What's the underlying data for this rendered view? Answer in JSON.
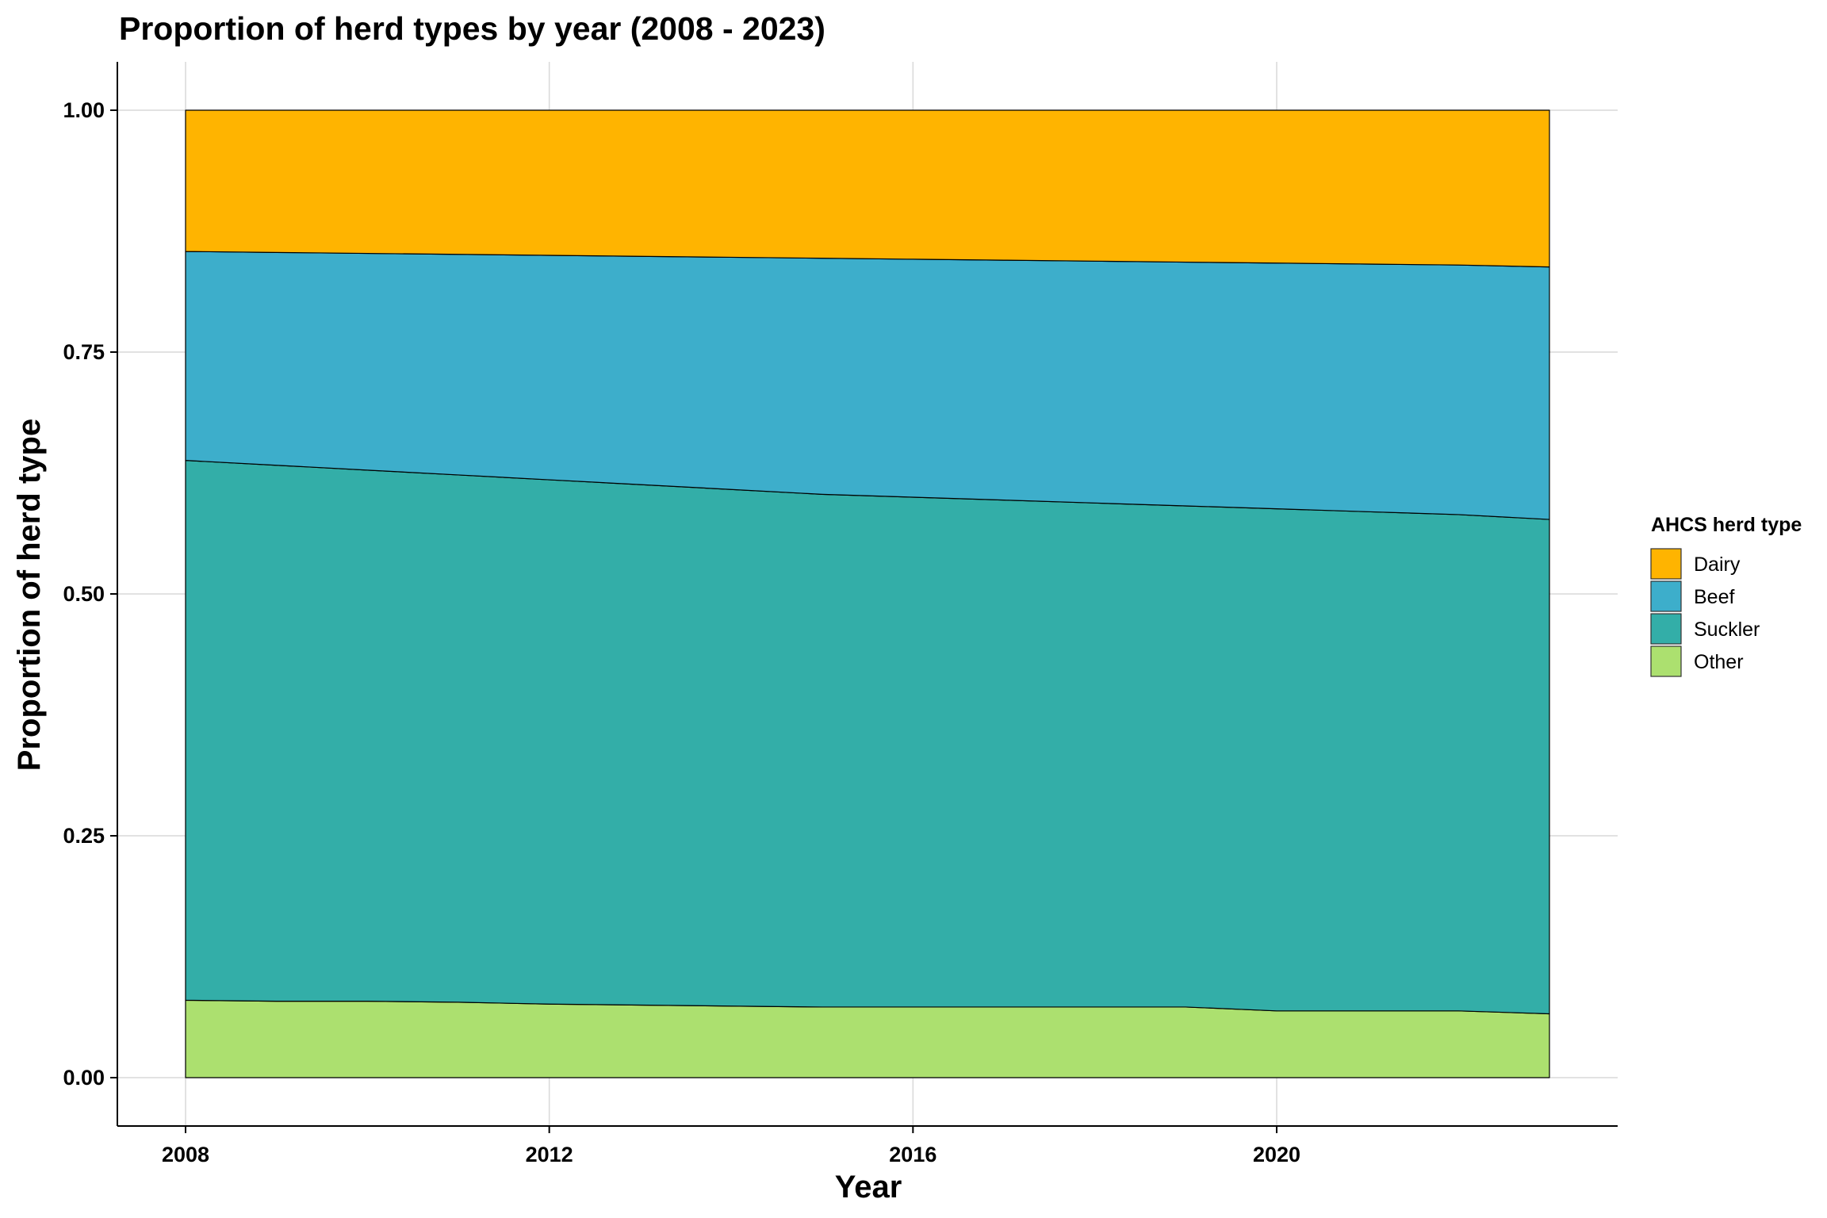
{
  "chart_data": {
    "type": "area",
    "stacked": true,
    "title": "Proportion of herd types by year (2008 - 2023)",
    "xlabel": "Year",
    "ylabel": "Proportion of herd type",
    "x": [
      2008,
      2009,
      2010,
      2011,
      2012,
      2013,
      2014,
      2015,
      2016,
      2017,
      2018,
      2019,
      2020,
      2021,
      2022,
      2023
    ],
    "xlim": [
      2007.25,
      2023.75
    ],
    "ylim": [
      -0.05,
      1.05
    ],
    "xticks": [
      2008,
      2012,
      2016,
      2020
    ],
    "xtick_labels": [
      "2008",
      "2012",
      "2016",
      "2020"
    ],
    "yticks": [
      0,
      0.25,
      0.5,
      0.75,
      1.0
    ],
    "ytick_labels": [
      "0.00",
      "0.25",
      "0.50",
      "0.75",
      "1.00"
    ],
    "grid": true,
    "legend": {
      "title": "AHCS herd type",
      "position": "right"
    },
    "series": [
      {
        "name": "Dairy",
        "color": "#FFB400",
        "values": [
          0.146,
          0.147,
          0.148,
          0.149,
          0.15,
          0.151,
          0.152,
          0.153,
          0.154,
          0.155,
          0.156,
          0.157,
          0.158,
          0.159,
          0.16,
          0.162
        ]
      },
      {
        "name": "Beef",
        "color": "#3DAECB",
        "values": [
          0.216,
          0.22,
          0.224,
          0.228,
          0.232,
          0.236,
          0.24,
          0.244,
          0.246,
          0.248,
          0.25,
          0.252,
          0.254,
          0.256,
          0.258,
          0.261
        ]
      },
      {
        "name": "Suckler",
        "color": "#33AEA8",
        "values": [
          0.558,
          0.554,
          0.549,
          0.545,
          0.542,
          0.538,
          0.534,
          0.53,
          0.527,
          0.524,
          0.521,
          0.518,
          0.519,
          0.516,
          0.513,
          0.511
        ]
      },
      {
        "name": "Other",
        "color": "#ACE06F",
        "values": [
          0.08,
          0.079,
          0.079,
          0.078,
          0.076,
          0.075,
          0.074,
          0.073,
          0.073,
          0.073,
          0.073,
          0.073,
          0.069,
          0.069,
          0.069,
          0.066
        ]
      }
    ]
  }
}
